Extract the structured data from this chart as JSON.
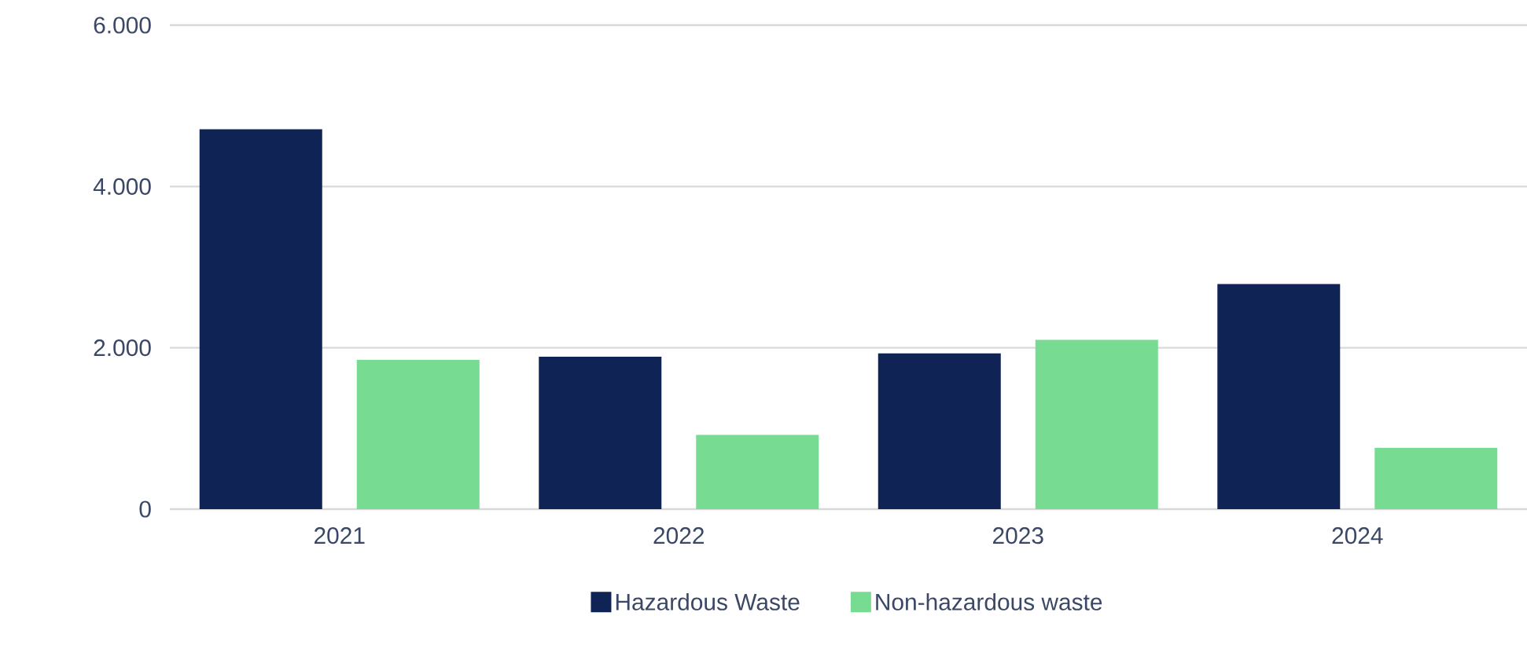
{
  "chart_data": {
    "type": "bar",
    "categories": [
      "2021",
      "2022",
      "2023",
      "2024"
    ],
    "series": [
      {
        "name": "Hazardous Waste",
        "color": "#0f2454",
        "values": [
          4710,
          1890,
          1930,
          2790
        ]
      },
      {
        "name": "Non-hazardous waste",
        "color": "#77db91",
        "values": [
          1850,
          920,
          2100,
          760
        ]
      }
    ],
    "ylim": [
      0,
      6000
    ],
    "yticks": [
      {
        "value": 0,
        "label": "0"
      },
      {
        "value": 2000,
        "label": "2.000"
      },
      {
        "value": 4000,
        "label": "4.000"
      },
      {
        "value": 6000,
        "label": "6.000"
      }
    ],
    "grid": "y",
    "legend": "bottom"
  }
}
